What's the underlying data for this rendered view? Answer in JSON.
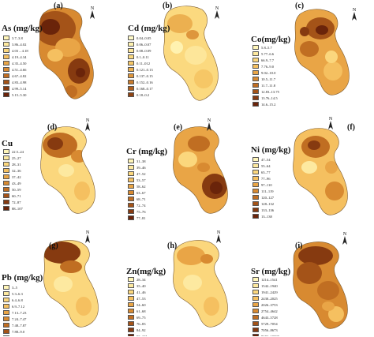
{
  "panels": [
    {
      "label": "(a)",
      "title": "As (mg/kg)",
      "legend": [
        "3.7–3.8",
        "3.86–4.02",
        "4.03 – 4.18",
        "4.19–4.34",
        "4.35–4.50",
        "4.51–4.66",
        "4.67–4.82",
        "4.83–4.98",
        "4.99–5.14",
        "5.15–5.30"
      ]
    },
    {
      "label": "(b)",
      "title": "Cd (mg/kg)",
      "legend": [
        "0.04–0.05",
        "0.06–0.07",
        "0.08–0.09",
        "0.1–0.11",
        "0.11–012",
        "0.121–0.13",
        "0.137–0.15",
        "0.152–0.16",
        "0.168–0.17",
        "0.18–0.2"
      ]
    },
    {
      "label": "(c)",
      "title": "Co(mg/kg)",
      "legend": [
        "5.8–5.7",
        "5.77–6.6",
        "66.9–7.7",
        "7.76–9.0",
        "9.02–10.0",
        "10.5–11.7",
        "11.7–11.8",
        "12.83–13.75",
        "13.76–14.5",
        "14.6–15.2"
      ]
    },
    {
      "label": "(d)",
      "title": "Cu",
      "legend": [
        "22.5–24",
        "25–27",
        "28–31",
        "32–36",
        "37–42",
        "43–49",
        "50–59",
        "60–71",
        "72–87",
        "88–107"
      ]
    },
    {
      "label": "(e)",
      "title": "Cr (mg/kg)",
      "legend": [
        "31–38",
        "39–46",
        "47–52",
        "53–57",
        "58–62",
        "63–67",
        "68–71",
        "72–74",
        "75–76",
        "77–81"
      ]
    },
    {
      "label": "(f)",
      "title": "Ni (mg/kg)",
      "legend": [
        "47–54",
        "55–64",
        "65–77",
        "77–96",
        "97–110",
        "111–119",
        "120–127",
        "128–132",
        "133–136",
        "13–138"
      ]
    },
    {
      "label": "(g)",
      "title": "Pb (mg/kg)",
      "legend": [
        "3–5",
        "5.3–6.3",
        "6.4–6.8",
        "6.9–7.12",
        "7.13–7.23",
        "7.24–7.47",
        "7.48–7.87",
        "7.88–9.0",
        "9.1 – 11. 2",
        "11.3–16.3"
      ]
    },
    {
      "label": "(h)",
      "title": "Zn(mg/kg)",
      "legend": [
        "28–34",
        "35–40",
        "41–46",
        "47–53",
        "54–60",
        "61–68",
        "69–75",
        "76–83",
        "84–92",
        "93–101"
      ]
    },
    {
      "label": "(i)",
      "title": "Sr (mg/kg)",
      "legend": [
        "1214–1541",
        "1542–1940",
        "1941–2429",
        "2430–2025",
        "2026–3753",
        "2754–4642",
        "4643–5728",
        "5729–7054",
        "7056–8673",
        "8674–10000"
      ]
    }
  ],
  "north_label": "N",
  "palettes": {
    "standard": [
      "#fff5b8",
      "#fde9a0",
      "#fbd77d",
      "#f5c060",
      "#e9a546",
      "#d88a31",
      "#c06e22",
      "#a45318",
      "#863a10",
      "#6a240a"
    ],
    "cd": [
      "#fffac8",
      "#fff2b0",
      "#fde69a",
      "#fbd97f",
      "#f6c766",
      "#ecb050",
      "#de963c",
      "#c97b2c",
      "#ae5f1e",
      "#8f4413"
    ]
  }
}
